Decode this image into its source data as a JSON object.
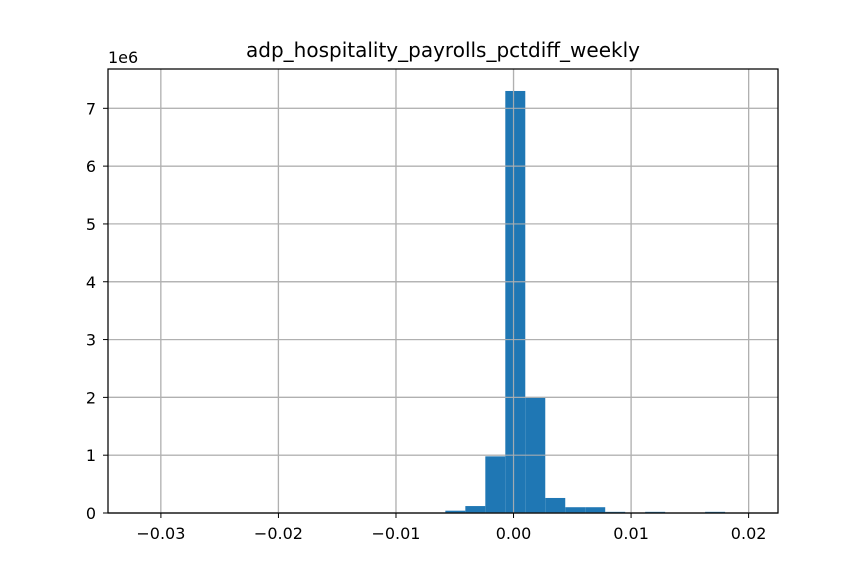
{
  "chart_data": {
    "type": "bar",
    "title": "adp_hospitality_payrolls_pctdiff_weekly",
    "xlabel": "",
    "ylabel": "",
    "y_offset_label": "1e6",
    "xlim": [
      -0.0345,
      0.0225
    ],
    "ylim": [
      0,
      7.68
    ],
    "grid": true,
    "bar_color": "#1f77b4",
    "x_ticks": [
      {
        "value": -0.03,
        "label": "−0.03"
      },
      {
        "value": -0.02,
        "label": "−0.02"
      },
      {
        "value": -0.01,
        "label": "−0.01"
      },
      {
        "value": 0.0,
        "label": "0.00"
      },
      {
        "value": 0.01,
        "label": "0.01"
      },
      {
        "value": 0.02,
        "label": "0.02"
      }
    ],
    "y_ticks": [
      {
        "value": 0,
        "label": "0"
      },
      {
        "value": 1,
        "label": "1"
      },
      {
        "value": 2,
        "label": "2"
      },
      {
        "value": 3,
        "label": "3"
      },
      {
        "value": 4,
        "label": "4"
      },
      {
        "value": 5,
        "label": "5"
      },
      {
        "value": 6,
        "label": "6"
      },
      {
        "value": 7,
        "label": "7"
      }
    ],
    "bins": [
      {
        "x0": -0.0058,
        "x1": -0.0041,
        "value": 0.04
      },
      {
        "x0": -0.0041,
        "x1": -0.0024,
        "value": 0.12
      },
      {
        "x0": -0.0024,
        "x1": -0.0007,
        "value": 0.98
      },
      {
        "x0": -0.0007,
        "x1": 0.001,
        "value": 7.3
      },
      {
        "x0": 0.001,
        "x1": 0.0027,
        "value": 2.0
      },
      {
        "x0": 0.0027,
        "x1": 0.0044,
        "value": 0.26
      },
      {
        "x0": 0.0044,
        "x1": 0.0061,
        "value": 0.1
      },
      {
        "x0": 0.0061,
        "x1": 0.0078,
        "value": 0.1
      },
      {
        "x0": 0.0078,
        "x1": 0.0095,
        "value": 0.02
      },
      {
        "x0": 0.0112,
        "x1": 0.0129,
        "value": 0.02
      },
      {
        "x0": 0.0163,
        "x1": 0.018,
        "value": 0.02
      }
    ]
  }
}
